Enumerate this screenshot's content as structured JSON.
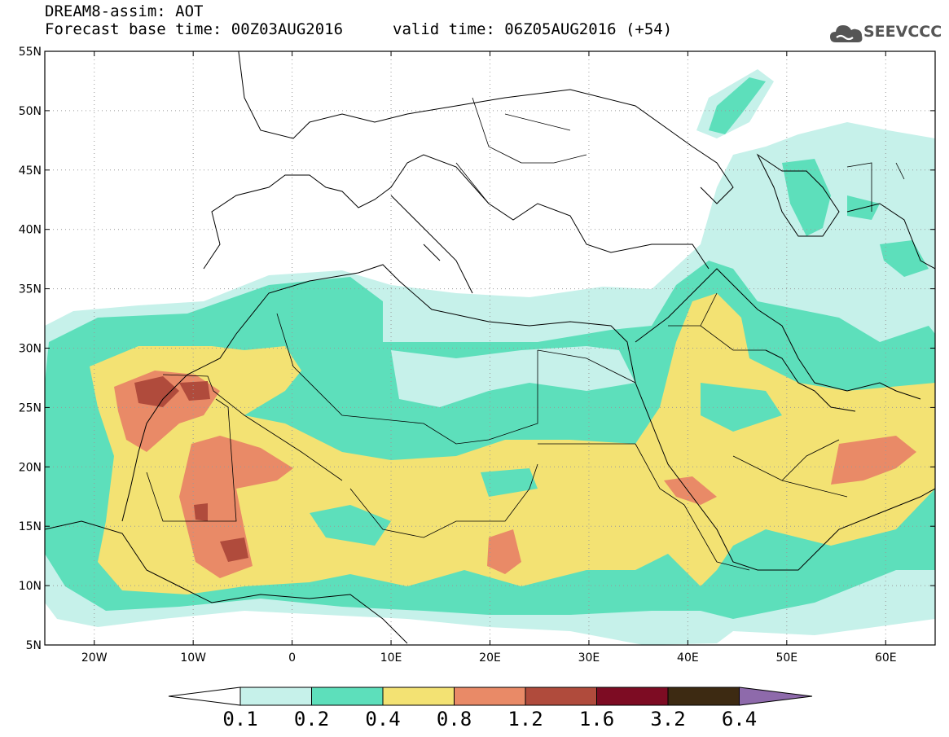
{
  "header": {
    "title": "DREAM8-assim: AOT",
    "base_time_label": "Forecast base time: 00Z03AUG2016",
    "valid_time_label": "valid time: 06Z05AUG2016 (+54)"
  },
  "logo": {
    "text": "SEEVCCC",
    "icon": "cloud-icon"
  },
  "map": {
    "lon_range": [
      -25,
      65
    ],
    "lat_range": [
      5,
      55
    ],
    "lat_ticks": [
      "5N",
      "10N",
      "15N",
      "20N",
      "25N",
      "30N",
      "35N",
      "40N",
      "45N",
      "50N",
      "55N"
    ],
    "lon_ticks": [
      "20W",
      "10W",
      "0",
      "10E",
      "20E",
      "30E",
      "40E",
      "50E",
      "60E"
    ],
    "grid": "dotted"
  },
  "colorbar": {
    "labels": [
      "0.1",
      "0.2",
      "0.4",
      "0.8",
      "1.2",
      "1.6",
      "3.2",
      "6.4"
    ],
    "colors": [
      "#c6f1ea",
      "#5ddfbb",
      "#f3e273",
      "#e98a67",
      "#b04b3c",
      "#7d0c23",
      "#3d2a12"
    ],
    "under_color": "#ffffff",
    "over_color": "#8e6aab"
  }
}
